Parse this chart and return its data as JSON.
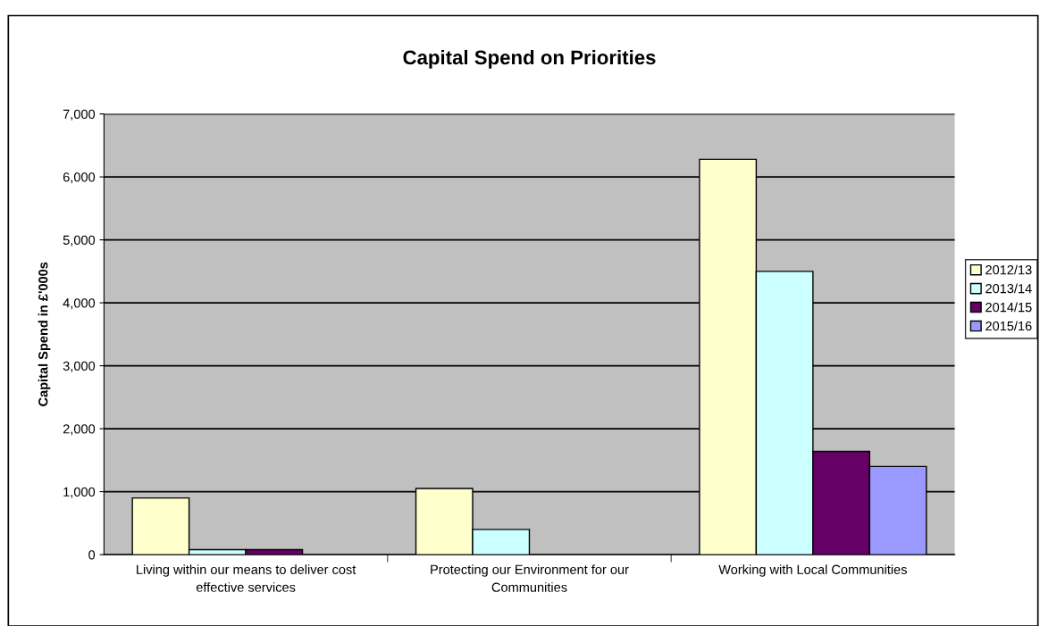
{
  "chart_data": {
    "type": "bar",
    "title": "Capital Spend on Priorities",
    "ylabel": "Capital Spend in £'000s",
    "categories": [
      "Living within our means to deliver cost effective services",
      "Protecting our Environment for our Communities",
      "Working with Local Communities"
    ],
    "series": [
      {
        "name": "2012/13",
        "color": "#ffffcc",
        "values": [
          900,
          1050,
          6280
        ]
      },
      {
        "name": "2013/14",
        "color": "#ccffff",
        "values": [
          80,
          400,
          4500
        ]
      },
      {
        "name": "2014/15",
        "color": "#660066",
        "values": [
          80,
          null,
          1640
        ]
      },
      {
        "name": "2015/16",
        "color": "#9999ff",
        "values": [
          null,
          null,
          1400
        ]
      }
    ],
    "ylim": [
      0,
      7000
    ],
    "yticks": [
      {
        "value": 0,
        "label": "0"
      },
      {
        "value": 1000,
        "label": "1,000"
      },
      {
        "value": 2000,
        "label": "2,000"
      },
      {
        "value": 3000,
        "label": "3,000"
      },
      {
        "value": 4000,
        "label": "4,000"
      },
      {
        "value": 5000,
        "label": "5,000"
      },
      {
        "value": 6000,
        "label": "6,000"
      },
      {
        "value": 7000,
        "label": "7,000"
      }
    ],
    "grid": "y",
    "legend": "right"
  }
}
